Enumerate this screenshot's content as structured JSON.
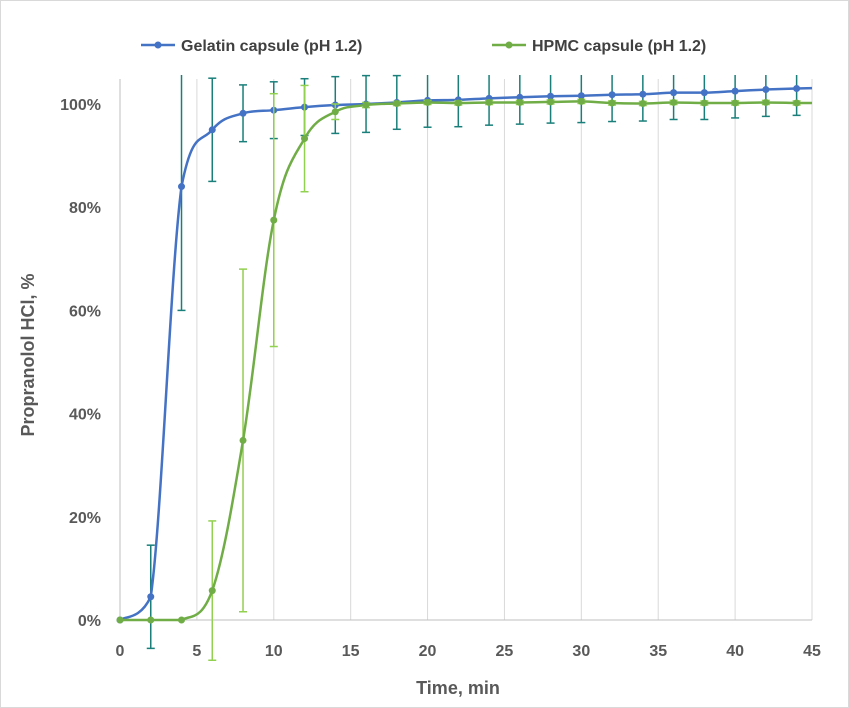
{
  "chart_data": {
    "type": "line",
    "title": "",
    "xlabel": "Time, min",
    "ylabel": "Propranolol HCl, %",
    "xlim": [
      0,
      45
    ],
    "ylim": [
      0,
      105
    ],
    "x_ticks": [
      0,
      5,
      10,
      15,
      20,
      25,
      30,
      35,
      40,
      45
    ],
    "y_ticks": [
      0,
      20,
      40,
      60,
      80,
      100
    ],
    "y_tick_suffix": "%",
    "grid": "vertical",
    "legend_position": "top",
    "series": [
      {
        "name": "Gelatin capsule (pH 1.2)",
        "color": "#4472c4",
        "error_bar_color": "#1a7f7a",
        "x": [
          0,
          2,
          4,
          6,
          8,
          10,
          12,
          14,
          16,
          18,
          20,
          22,
          24,
          26,
          28,
          30,
          32,
          34,
          36,
          38,
          40,
          42,
          44
        ],
        "y": [
          0,
          4.5,
          84,
          95,
          98.2,
          98.8,
          99.4,
          99.8,
          100,
          100.3,
          100.7,
          100.8,
          101.1,
          101.3,
          101.5,
          101.6,
          101.8,
          101.9,
          102.2,
          102.2,
          102.5,
          102.8,
          103
        ],
        "error": [
          0,
          10,
          24,
          10,
          5.5,
          5.5,
          5.5,
          5.5,
          5.5,
          5.2,
          5.2,
          5.2,
          5.2,
          5.2,
          5.2,
          5.2,
          5.2,
          5.2,
          5.2,
          5.2,
          5.2,
          5.2,
          5.2
        ]
      },
      {
        "name": "HPMC capsule (pH 1.2)",
        "color": "#70ad47",
        "error_bar_color": "#92d050",
        "x": [
          0,
          2,
          4,
          6,
          8,
          10,
          12,
          14,
          16,
          18,
          20,
          22,
          24,
          26,
          28,
          30,
          32,
          34,
          36,
          38,
          40,
          42,
          44
        ],
        "y": [
          0,
          0,
          0,
          5.7,
          34.8,
          77.5,
          93.3,
          98.5,
          99.8,
          100.1,
          100.3,
          100.2,
          100.3,
          100.3,
          100.4,
          100.5,
          100.2,
          100.1,
          100.3,
          100.2,
          100.2,
          100.3,
          100.2
        ],
        "error": [
          0,
          0,
          0,
          13.5,
          33.2,
          24.5,
          10.3,
          1.5,
          0.5,
          0.4,
          0.4,
          0.4,
          0.4,
          0.4,
          0.4,
          0.4,
          0.4,
          0.4,
          0.4,
          0.4,
          0.4,
          0.4,
          0.4
        ]
      }
    ]
  }
}
